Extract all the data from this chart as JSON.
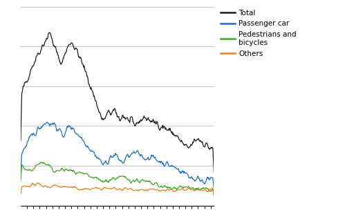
{
  "line_colors": {
    "Total": "#1a1a1a",
    "Passenger car": "#1a6ec8",
    "Pedestrians and bicycles": "#3aaa20",
    "Others": "#e88020"
  },
  "legend_labels": [
    "Total",
    "Passenger car",
    "Pedestrians and\nbicycles",
    "Others"
  ],
  "legend_colors": [
    "#1a1a1a",
    "#1a6ec8",
    "#3aaa20",
    "#e88020"
  ],
  "grid_color": "#bbbbbb",
  "background_color": "#ffffff",
  "n_points": 366,
  "ylim": [
    0,
    1.0
  ],
  "n_gridlines": 5
}
